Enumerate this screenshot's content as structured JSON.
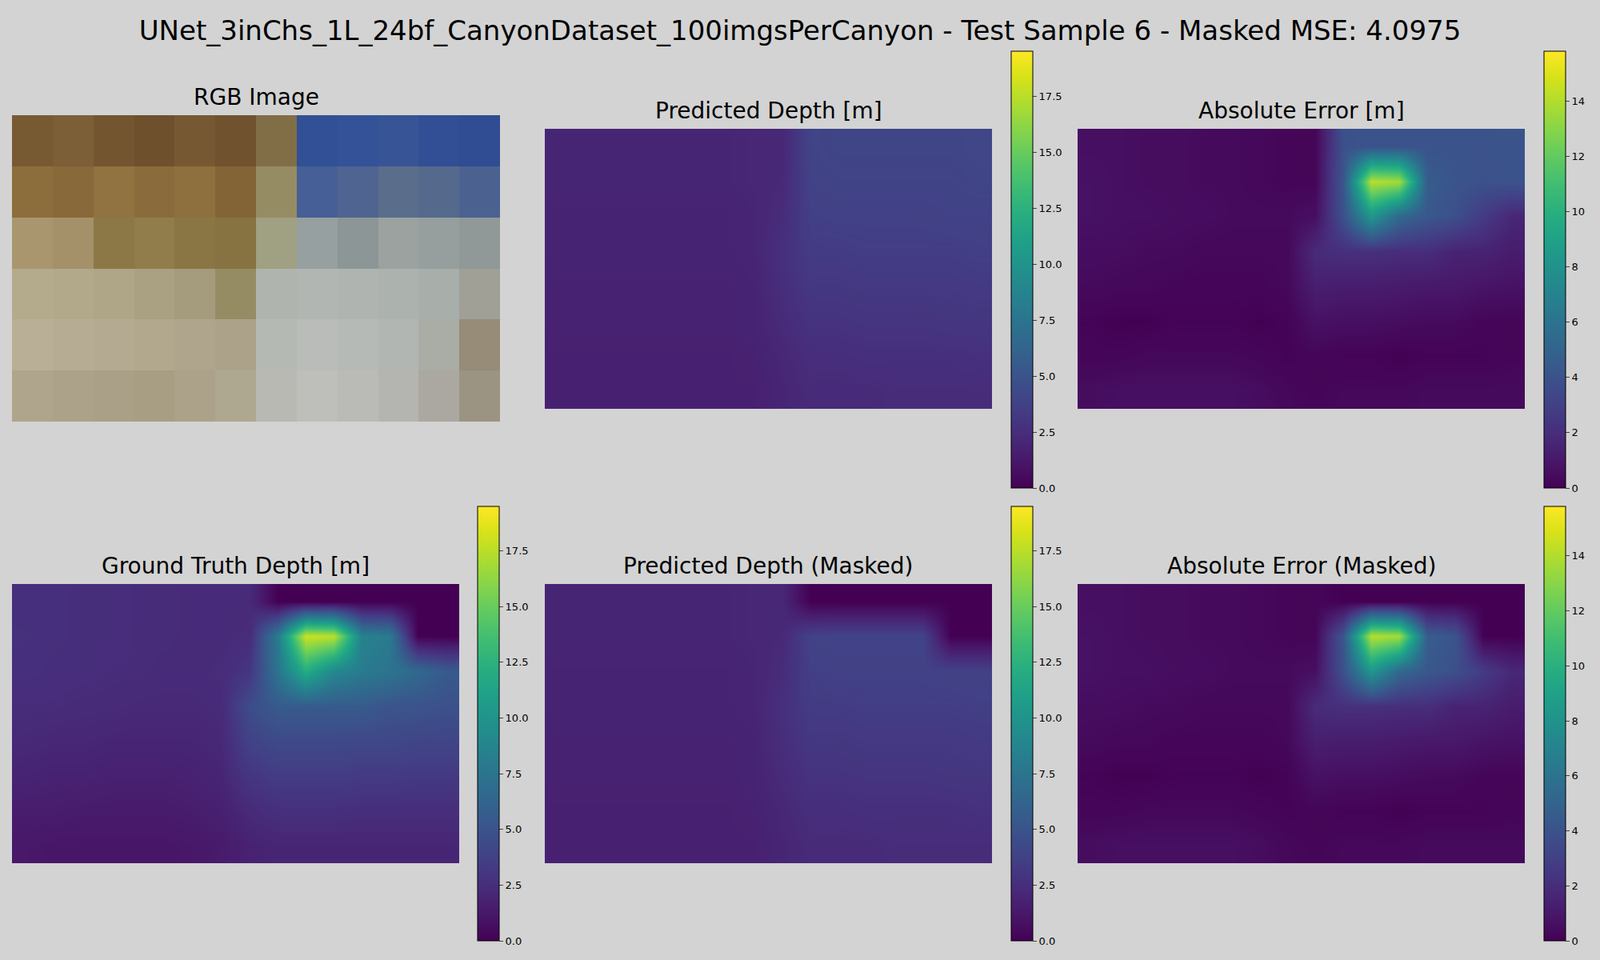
{
  "figure_title": "UNet_3inChs_1L_24bf_CanyonDataset_100imgsPerCanyon - Test Sample 6 - Masked MSE: 4.0975",
  "chart_data": [
    {
      "type": "image",
      "title": "RGB Image",
      "tick_labels": false,
      "pixels": [
        [
          [
            120,
            90,
            50
          ],
          [
            125,
            95,
            55
          ],
          [
            115,
            85,
            48
          ],
          [
            110,
            80,
            45
          ],
          [
            118,
            88,
            50
          ],
          [
            112,
            82,
            46
          ],
          [
            130,
            110,
            70
          ],
          [
            50,
            80,
            150
          ],
          [
            52,
            82,
            152
          ],
          [
            55,
            85,
            150
          ],
          [
            50,
            78,
            148
          ],
          [
            48,
            76,
            146
          ]
        ],
        [
          [
            140,
            110,
            60
          ],
          [
            135,
            105,
            58
          ],
          [
            145,
            115,
            65
          ],
          [
            138,
            108,
            60
          ],
          [
            142,
            112,
            62
          ],
          [
            130,
            100,
            55
          ],
          [
            150,
            140,
            100
          ],
          [
            70,
            95,
            150
          ],
          [
            80,
            100,
            145
          ],
          [
            90,
            110,
            140
          ],
          [
            85,
            105,
            140
          ],
          [
            75,
            98,
            145
          ]
        ],
        [
          [
            170,
            150,
            110
          ],
          [
            165,
            145,
            105
          ],
          [
            140,
            120,
            70
          ],
          [
            145,
            125,
            75
          ],
          [
            138,
            118,
            68
          ],
          [
            135,
            115,
            65
          ],
          [
            160,
            160,
            130
          ],
          [
            150,
            160,
            160
          ],
          [
            140,
            150,
            150
          ],
          [
            155,
            162,
            160
          ],
          [
            150,
            158,
            158
          ],
          [
            145,
            152,
            152
          ]
        ],
        [
          [
            180,
            170,
            140
          ],
          [
            178,
            168,
            138
          ],
          [
            175,
            165,
            135
          ],
          [
            170,
            160,
            130
          ],
          [
            165,
            155,
            125
          ],
          [
            150,
            140,
            100
          ],
          [
            175,
            180,
            175
          ],
          [
            178,
            182,
            178
          ],
          [
            175,
            180,
            176
          ],
          [
            172,
            178,
            174
          ],
          [
            168,
            174,
            170
          ],
          [
            160,
            160,
            150
          ]
        ],
        [
          [
            185,
            175,
            150
          ],
          [
            182,
            172,
            148
          ],
          [
            180,
            170,
            145
          ],
          [
            178,
            168,
            142
          ],
          [
            175,
            165,
            140
          ],
          [
            172,
            162,
            138
          ],
          [
            180,
            185,
            180
          ],
          [
            185,
            188,
            185
          ],
          [
            182,
            186,
            182
          ],
          [
            178,
            182,
            178
          ],
          [
            170,
            172,
            166
          ],
          [
            150,
            140,
            120
          ]
        ],
        [
          [
            175,
            165,
            140
          ],
          [
            172,
            162,
            138
          ],
          [
            170,
            160,
            135
          ],
          [
            168,
            158,
            132
          ],
          [
            172,
            162,
            138
          ],
          [
            175,
            168,
            145
          ],
          [
            185,
            185,
            180
          ],
          [
            190,
            190,
            186
          ],
          [
            186,
            186,
            182
          ],
          [
            180,
            180,
            176
          ],
          [
            170,
            168,
            160
          ],
          [
            155,
            148,
            130
          ]
        ]
      ]
    },
    {
      "type": "heatmap",
      "title": "Predicted Depth [m]",
      "color": "viridis",
      "tick_labels": false,
      "colorbar_range": [
        0,
        19.5
      ],
      "colorbar_ticks": [
        {
          "value": 0,
          "label": "0.0"
        },
        2.5,
        {
          "value": 5,
          "label": "5.0"
        },
        7.5,
        {
          "value": 10,
          "label": "10.0"
        },
        12.5,
        {
          "value": 15,
          "label": "15.0"
        },
        17.5
      ],
      "cells": [
        [
          2.0,
          2.0,
          2.0,
          2.0,
          2.0,
          2.0,
          2.0,
          2.1,
          2.1,
          3.9,
          4.0,
          4.0,
          4.0,
          4.0,
          4.0,
          4.1
        ],
        [
          2.0,
          2.0,
          2.0,
          2.0,
          2.0,
          2.0,
          2.0,
          2.1,
          2.2,
          3.8,
          3.9,
          3.9,
          3.9,
          3.9,
          3.9,
          4.0
        ],
        [
          1.9,
          1.9,
          1.9,
          1.9,
          1.9,
          1.9,
          1.9,
          2.0,
          2.4,
          3.6,
          3.7,
          3.7,
          3.7,
          3.7,
          3.8,
          3.8
        ],
        [
          1.9,
          1.9,
          1.9,
          1.9,
          1.9,
          1.9,
          1.9,
          2.0,
          2.6,
          3.4,
          3.4,
          3.5,
          3.5,
          3.5,
          3.5,
          3.6
        ],
        [
          1.8,
          1.8,
          1.8,
          1.8,
          1.8,
          1.8,
          1.8,
          1.9,
          2.5,
          3.1,
          3.1,
          3.2,
          3.2,
          3.2,
          3.2,
          3.3
        ],
        [
          1.8,
          1.8,
          1.8,
          1.8,
          1.8,
          1.8,
          1.8,
          1.9,
          2.3,
          2.8,
          2.8,
          2.9,
          2.9,
          2.9,
          3.0,
          3.0
        ],
        [
          1.7,
          1.7,
          1.7,
          1.7,
          1.7,
          1.7,
          1.7,
          1.8,
          2.1,
          2.5,
          2.5,
          2.6,
          2.6,
          2.6,
          2.6,
          2.7
        ],
        [
          1.7,
          1.7,
          1.7,
          1.7,
          1.7,
          1.7,
          1.7,
          1.7,
          2.0,
          2.3,
          2.3,
          2.3,
          2.4,
          2.4,
          2.4,
          2.4
        ]
      ]
    },
    {
      "type": "heatmap",
      "title": "Absolute Error [m]",
      "color": "viridis",
      "tick_labels": false,
      "colorbar_range": [
        0,
        15.8
      ],
      "colorbar_ticks": [
        0,
        2,
        4,
        6,
        8,
        10,
        12,
        14
      ],
      "cells": [
        [
          0.6,
          0.6,
          0.5,
          0.5,
          0.4,
          0.4,
          0.3,
          0.2,
          0.2,
          3.9,
          4.0,
          4.0,
          4.0,
          4.0,
          4.0,
          4.1
        ],
        [
          0.7,
          0.6,
          0.5,
          0.5,
          0.4,
          0.4,
          0.3,
          0.2,
          0.2,
          4.2,
          14.1,
          13.6,
          4.6,
          4.1,
          3.9,
          4.0
        ],
        [
          0.7,
          0.6,
          0.6,
          0.5,
          0.5,
          0.4,
          0.4,
          0.4,
          0.6,
          3.9,
          8.3,
          5.3,
          4.3,
          3.8,
          2.7,
          1.7
        ],
        [
          0.5,
          0.5,
          0.4,
          0.4,
          0.3,
          0.3,
          0.3,
          0.3,
          1.9,
          2.1,
          2.1,
          2.0,
          2.0,
          1.5,
          1.5,
          1.2
        ],
        [
          0.4,
          0.3,
          0.3,
          0.2,
          0.2,
          0.2,
          0.2,
          0.3,
          1.3,
          1.2,
          1.2,
          1.1,
          1.0,
          1.0,
          0.8,
          0.7
        ],
        [
          0.1,
          0.0,
          0.0,
          0.1,
          0.1,
          0.1,
          0.0,
          0.1,
          0.7,
          0.6,
          0.6,
          0.5,
          0.4,
          0.4,
          0.2,
          0.2
        ],
        [
          0.2,
          0.2,
          0.3,
          0.3,
          0.3,
          0.3,
          0.2,
          0.1,
          0.2,
          0.1,
          0.1,
          0.0,
          0.1,
          0.1,
          0.1,
          0.2
        ],
        [
          0.5,
          0.6,
          0.6,
          0.6,
          0.6,
          0.6,
          0.5,
          0.3,
          0.2,
          0.3,
          0.3,
          0.3,
          0.4,
          0.4,
          0.4,
          0.4
        ]
      ]
    },
    {
      "type": "heatmap",
      "title": "Ground Truth Depth [m]",
      "color": "viridis",
      "tick_labels": false,
      "colorbar_range": [
        0,
        19.5
      ],
      "colorbar_ticks": [
        {
          "value": 0,
          "label": "0.0"
        },
        2.5,
        {
          "value": 5,
          "label": "5.0"
        },
        7.5,
        {
          "value": 10,
          "label": "10.0"
        },
        12.5,
        {
          "value": 15,
          "label": "15.0"
        },
        17.5
      ],
      "cells": [
        [
          2.6,
          2.6,
          2.5,
          2.5,
          2.4,
          2.4,
          2.3,
          2.3,
          2.3,
          0,
          0,
          0,
          0,
          0,
          0,
          0
        ],
        [
          2.7,
          2.6,
          2.5,
          2.5,
          2.4,
          2.4,
          2.3,
          2.3,
          2.4,
          8.0,
          18.0,
          17.5,
          8.5,
          8.0,
          0,
          0
        ],
        [
          2.6,
          2.5,
          2.5,
          2.4,
          2.4,
          2.3,
          2.3,
          2.4,
          3.0,
          7.5,
          12.0,
          9.0,
          8.0,
          7.5,
          6.5,
          5.5
        ],
        [
          2.4,
          2.4,
          2.3,
          2.3,
          2.2,
          2.2,
          2.2,
          2.3,
          4.5,
          5.5,
          5.5,
          5.5,
          5.5,
          5.0,
          5.0,
          4.8
        ],
        [
          2.2,
          2.1,
          2.1,
          2.0,
          2.0,
          2.0,
          2.0,
          2.2,
          3.8,
          4.3,
          4.3,
          4.3,
          4.2,
          4.2,
          4.0,
          4.0
        ],
        [
          1.9,
          1.8,
          1.8,
          1.7,
          1.7,
          1.7,
          1.8,
          2.0,
          3.0,
          3.4,
          3.4,
          3.4,
          3.3,
          3.3,
          3.2,
          3.2
        ],
        [
          1.5,
          1.5,
          1.4,
          1.4,
          1.4,
          1.4,
          1.5,
          1.7,
          2.3,
          2.6,
          2.6,
          2.6,
          2.5,
          2.5,
          2.5,
          2.5
        ],
        [
          1.2,
          1.1,
          1.1,
          1.1,
          1.1,
          1.1,
          1.2,
          1.4,
          1.8,
          2.0,
          2.0,
          2.0,
          2.0,
          2.0,
          2.0,
          2.0
        ]
      ]
    },
    {
      "type": "heatmap",
      "title": "Predicted Depth (Masked)",
      "color": "viridis",
      "tick_labels": false,
      "colorbar_range": [
        0,
        19.5
      ],
      "colorbar_ticks": [
        {
          "value": 0,
          "label": "0.0"
        },
        2.5,
        {
          "value": 5,
          "label": "5.0"
        },
        7.5,
        {
          "value": 10,
          "label": "10.0"
        },
        12.5,
        {
          "value": 15,
          "label": "15.0"
        },
        17.5
      ],
      "cells": [
        [
          2.0,
          2.0,
          2.0,
          2.0,
          2.0,
          2.0,
          2.0,
          2.1,
          2.1,
          0,
          0,
          0,
          0,
          0,
          0,
          0
        ],
        [
          2.0,
          2.0,
          2.0,
          2.0,
          2.0,
          2.0,
          2.0,
          2.1,
          2.2,
          3.8,
          3.9,
          3.9,
          3.9,
          3.9,
          0,
          0
        ],
        [
          1.9,
          1.9,
          1.9,
          1.9,
          1.9,
          1.9,
          1.9,
          2.0,
          2.4,
          3.6,
          3.7,
          3.7,
          3.7,
          3.7,
          3.8,
          3.8
        ],
        [
          1.9,
          1.9,
          1.9,
          1.9,
          1.9,
          1.9,
          1.9,
          2.0,
          2.6,
          3.4,
          3.4,
          3.5,
          3.5,
          3.5,
          3.5,
          3.6
        ],
        [
          1.8,
          1.8,
          1.8,
          1.8,
          1.8,
          1.8,
          1.8,
          1.9,
          2.5,
          3.1,
          3.1,
          3.2,
          3.2,
          3.2,
          3.2,
          3.3
        ],
        [
          1.8,
          1.8,
          1.8,
          1.8,
          1.8,
          1.8,
          1.8,
          1.9,
          2.3,
          2.8,
          2.8,
          2.9,
          2.9,
          2.9,
          3.0,
          3.0
        ],
        [
          1.7,
          1.7,
          1.7,
          1.7,
          1.7,
          1.7,
          1.7,
          1.8,
          2.1,
          2.5,
          2.5,
          2.6,
          2.6,
          2.6,
          2.6,
          2.7
        ],
        [
          1.7,
          1.7,
          1.7,
          1.7,
          1.7,
          1.7,
          1.7,
          1.7,
          2.0,
          2.3,
          2.3,
          2.3,
          2.4,
          2.4,
          2.4,
          2.4
        ]
      ]
    },
    {
      "type": "heatmap",
      "title": "Absolute Error (Masked)",
      "color": "viridis",
      "tick_labels": false,
      "colorbar_range": [
        0,
        15.8
      ],
      "colorbar_ticks": [
        0,
        2,
        4,
        6,
        8,
        10,
        12,
        14
      ],
      "cells": [
        [
          0.6,
          0.6,
          0.5,
          0.5,
          0.4,
          0.4,
          0.3,
          0.2,
          0.2,
          0,
          0,
          0,
          0,
          0,
          0,
          0
        ],
        [
          0.7,
          0.6,
          0.5,
          0.5,
          0.4,
          0.4,
          0.3,
          0.2,
          0.2,
          4.2,
          14.1,
          13.6,
          4.6,
          4.1,
          0,
          0
        ],
        [
          0.7,
          0.6,
          0.6,
          0.5,
          0.5,
          0.4,
          0.4,
          0.4,
          0.6,
          3.9,
          8.3,
          5.3,
          4.3,
          3.8,
          2.7,
          1.7
        ],
        [
          0.5,
          0.5,
          0.4,
          0.4,
          0.3,
          0.3,
          0.3,
          0.3,
          1.9,
          2.1,
          2.1,
          2.0,
          2.0,
          1.5,
          1.5,
          1.2
        ],
        [
          0.4,
          0.3,
          0.3,
          0.2,
          0.2,
          0.2,
          0.2,
          0.3,
          1.3,
          1.2,
          1.2,
          1.1,
          1.0,
          1.0,
          0.8,
          0.7
        ],
        [
          0.1,
          0.0,
          0.0,
          0.1,
          0.1,
          0.1,
          0.0,
          0.1,
          0.7,
          0.6,
          0.6,
          0.5,
          0.4,
          0.4,
          0.2,
          0.2
        ],
        [
          0.2,
          0.2,
          0.3,
          0.3,
          0.3,
          0.3,
          0.2,
          0.1,
          0.2,
          0.1,
          0.1,
          0.0,
          0.1,
          0.1,
          0.1,
          0.2
        ],
        [
          0.5,
          0.6,
          0.6,
          0.6,
          0.6,
          0.6,
          0.5,
          0.3,
          0.2,
          0.3,
          0.3,
          0.3,
          0.4,
          0.4,
          0.4,
          0.4
        ]
      ]
    }
  ]
}
